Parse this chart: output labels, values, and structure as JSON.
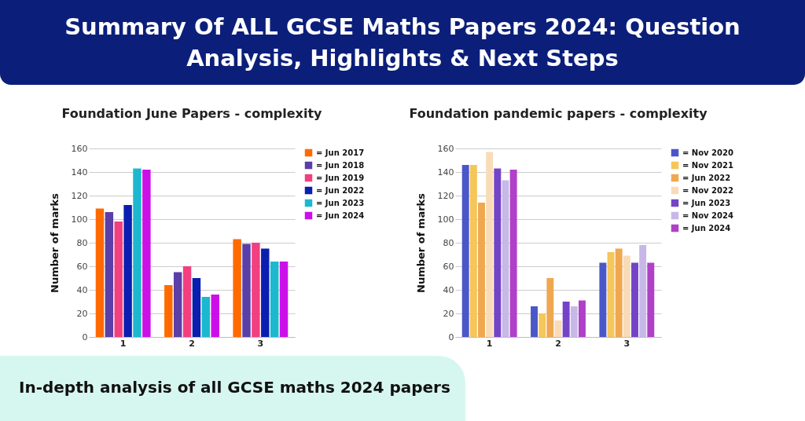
{
  "chart_data": [
    {
      "type": "other",
      "title": "Summary Of ALL GCSE Maths Papers 2024: Question Analysis, Highlights & Next Steps",
      "annotations": [
        "In-depth analysis of all GCSE maths 2024 papers"
      ]
    },
    {
      "type": "bar",
      "title": "Foundation June Papers - complexity",
      "ylabel": "Number of marks",
      "categories": [
        "1",
        "2",
        "3"
      ],
      "ylim": [
        0,
        160
      ],
      "yticks": [
        0,
        20,
        40,
        60,
        80,
        100,
        120,
        140,
        160
      ],
      "grid": "y",
      "legend": "right",
      "series": [
        {
          "name": "= Jun 2017",
          "color": "#ff6a00",
          "values": [
            109,
            44,
            83
          ]
        },
        {
          "name": "= Jun 2018",
          "color": "#5b3ea8",
          "values": [
            106,
            55,
            79
          ]
        },
        {
          "name": "= Jun 2019",
          "color": "#f23f7f",
          "values": [
            98,
            60,
            80
          ]
        },
        {
          "name": "= Jun 2022",
          "color": "#0a1fb0",
          "values": [
            112,
            50,
            75
          ]
        },
        {
          "name": "= Jun 2023",
          "color": "#1bb8cf",
          "values": [
            143,
            34,
            64
          ]
        },
        {
          "name": "= Jun 2024",
          "color": "#cc0fe8",
          "values": [
            142,
            36,
            64
          ]
        }
      ]
    },
    {
      "type": "bar",
      "title": "Foundation pandemic papers - complexity",
      "ylabel": "Number of marks",
      "categories": [
        "1",
        "2",
        "3"
      ],
      "ylim": [
        0,
        160
      ],
      "yticks": [
        0,
        20,
        40,
        60,
        80,
        100,
        120,
        140,
        160
      ],
      "grid": "y",
      "legend": "right",
      "series": [
        {
          "name": "= Nov 2020",
          "color": "#4a57c8",
          "values": [
            146,
            26,
            63
          ]
        },
        {
          "name": "= Nov 2021",
          "color": "#f5c65a",
          "values": [
            146,
            20,
            72
          ]
        },
        {
          "name": "= Jun 2022",
          "color": "#f0a850",
          "values": [
            114,
            50,
            75
          ]
        },
        {
          "name": "= Nov 2022",
          "color": "#f8dcb8",
          "values": [
            157,
            14,
            69
          ]
        },
        {
          "name": "= Jun 2023",
          "color": "#7344c8",
          "values": [
            143,
            30,
            63
          ]
        },
        {
          "name": "= Nov 2024",
          "color": "#c8b8e8",
          "values": [
            133,
            26,
            78
          ]
        },
        {
          "name": "= Jun 2024",
          "color": "#b040c8",
          "values": [
            142,
            31,
            63
          ]
        }
      ]
    }
  ]
}
